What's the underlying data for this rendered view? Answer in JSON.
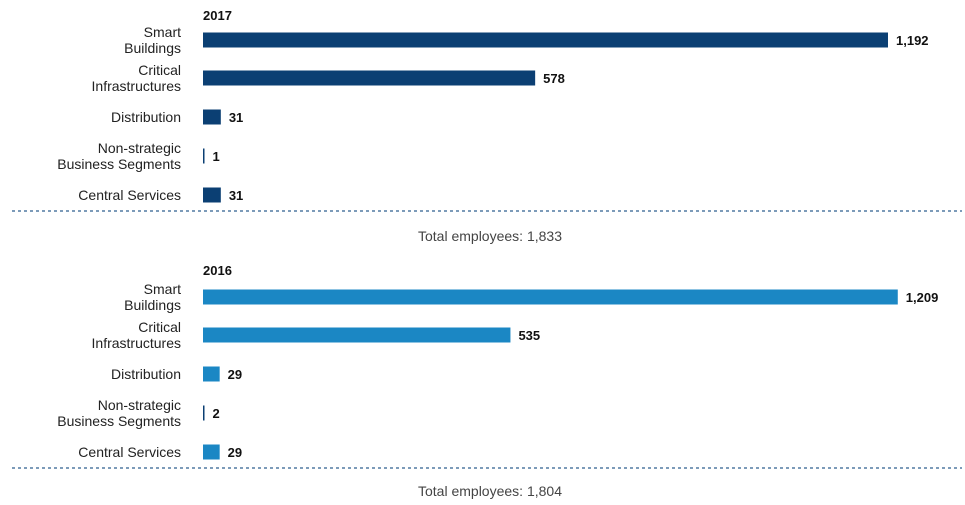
{
  "chart_data": [
    {
      "type": "bar",
      "orientation": "horizontal",
      "title": "2017",
      "categories": [
        [
          "Smart",
          "Buildings"
        ],
        [
          "Critical",
          "Infrastructures"
        ],
        [
          "Distribution"
        ],
        [
          "Non-strategic",
          "Business Segments"
        ],
        [
          "Central Services"
        ]
      ],
      "values": [
        1192,
        578,
        31,
        1,
        31
      ],
      "value_labels": [
        "1,192",
        "578",
        "31",
        "1",
        "31"
      ],
      "color": "#0b3f73",
      "total_label": "Total employees: 1,833"
    },
    {
      "type": "bar",
      "orientation": "horizontal",
      "title": "2016",
      "categories": [
        [
          "Smart",
          "Buildings"
        ],
        [
          "Critical",
          "Infrastructures"
        ],
        [
          "Distribution"
        ],
        [
          "Non-strategic",
          "Business Segments"
        ],
        [
          "Central Services"
        ]
      ],
      "values": [
        1209,
        535,
        29,
        2,
        29
      ],
      "value_labels": [
        "1,209",
        "535",
        "29",
        "2",
        "29"
      ],
      "color": "#1b87c4",
      "small_bar_color": "#0b3f73",
      "total_label": "Total employees: 1,804"
    }
  ],
  "colors": {
    "divider": "#2f5f8f",
    "text": "#222222"
  }
}
